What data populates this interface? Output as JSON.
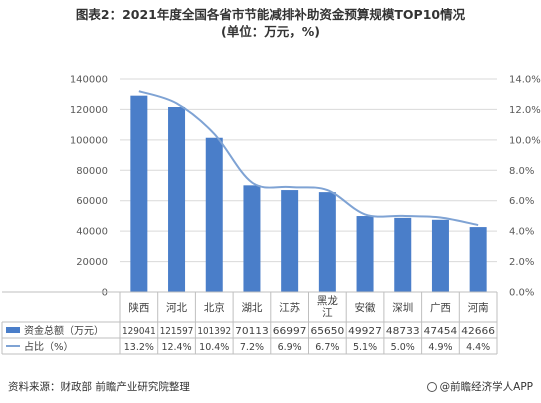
{
  "title_line1": "图表2：2021年度全国各省市节能减排补助资金预算规模TOP10情况",
  "title_line2": "(单位：万元，%)",
  "source": "资料来源：财政部 前瞻产业研究院整理",
  "brand": "@前瞻经济学人APP",
  "colors": {
    "bar": "#4a7ec9",
    "line": "#7fa3d4",
    "grid": "#d9d9d9",
    "axis_text": "#595959"
  },
  "chart_data": {
    "type": "bar",
    "categories": [
      "陕西",
      "河北",
      "北京",
      "湖北",
      "江苏",
      "黑龙江",
      "安徽",
      "深圳",
      "广西",
      "河南"
    ],
    "series": [
      {
        "name": "资金总额（万元）",
        "type": "bar",
        "axis": "left",
        "values": [
          129041,
          121597,
          101392,
          70113,
          66997,
          65650,
          49927,
          48733,
          47454,
          42666
        ],
        "labels": [
          "129041",
          "121597",
          "101392",
          "70113",
          "66997",
          "65650",
          "49927",
          "48733",
          "47454",
          "42666"
        ]
      },
      {
        "name": "占比（%）",
        "type": "line",
        "axis": "right",
        "values": [
          13.2,
          12.4,
          10.4,
          7.2,
          6.9,
          6.7,
          5.1,
          5.0,
          4.9,
          4.4
        ],
        "labels": [
          "13.2%",
          "12.4%",
          "10.4%",
          "7.2%",
          "6.9%",
          "6.7%",
          "5.1%",
          "5.0%",
          "4.9%",
          "4.4%"
        ]
      }
    ],
    "ylim_left": [
      0,
      140000
    ],
    "yticks_left": [
      "0",
      "20000",
      "40000",
      "60000",
      "80000",
      "100000",
      "120000",
      "140000"
    ],
    "ylim_right": [
      0,
      14
    ],
    "yticks_right": [
      "0.0%",
      "2.0%",
      "4.0%",
      "6.0%",
      "8.0%",
      "10.0%",
      "12.0%",
      "14.0%"
    ],
    "grid": true,
    "legend": "bottom-table"
  }
}
